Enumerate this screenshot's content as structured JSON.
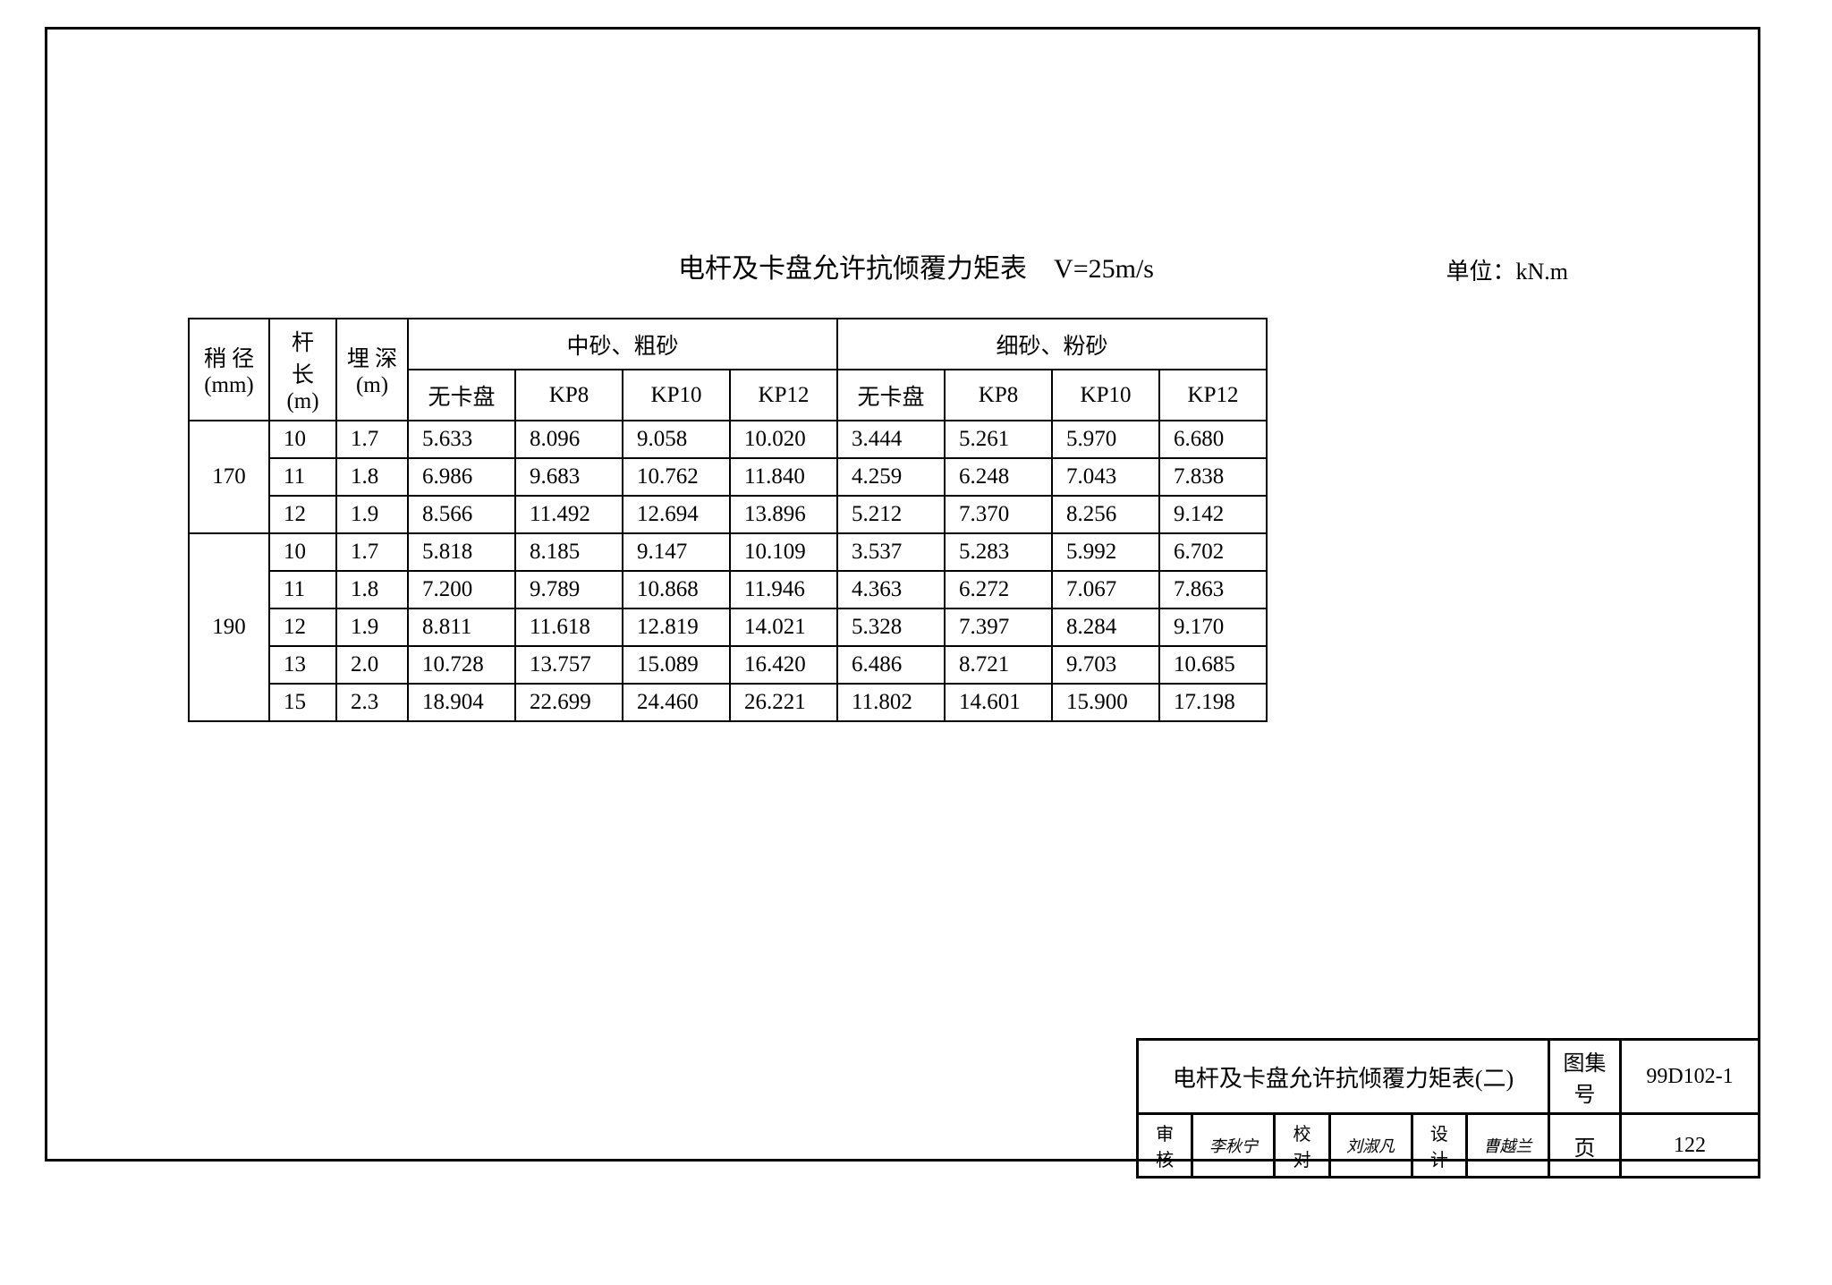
{
  "title": "电杆及卡盘允许抗倾覆力矩表　V=25m/s",
  "unit_label": "单位：kN.m",
  "table": {
    "type": "table",
    "header1": {
      "diameter": "稍 径\n(mm)",
      "length": "杆 长\n(m)",
      "depth": "埋 深\n(m)",
      "group1": "中砂、粗砂",
      "group2": "细砂、粉砂"
    },
    "header2": [
      "无卡盘",
      "KP8",
      "KP10",
      "KP12",
      "无卡盘",
      "KP8",
      "KP10",
      "KP12"
    ],
    "groups": [
      {
        "diameter": "170",
        "rows": [
          {
            "length": "10",
            "depth": "1.7",
            "cells": [
              "5.633",
              "8.096",
              "9.058",
              "10.020",
              "3.444",
              "5.261",
              "5.970",
              "6.680"
            ]
          },
          {
            "length": "11",
            "depth": "1.8",
            "cells": [
              "6.986",
              "9.683",
              "10.762",
              "11.840",
              "4.259",
              "6.248",
              "7.043",
              "7.838"
            ]
          },
          {
            "length": "12",
            "depth": "1.9",
            "cells": [
              "8.566",
              "11.492",
              "12.694",
              "13.896",
              "5.212",
              "7.370",
              "8.256",
              "9.142"
            ]
          }
        ]
      },
      {
        "diameter": "190",
        "rows": [
          {
            "length": "10",
            "depth": "1.7",
            "cells": [
              "5.818",
              "8.185",
              "9.147",
              "10.109",
              "3.537",
              "5.283",
              "5.992",
              "6.702"
            ]
          },
          {
            "length": "11",
            "depth": "1.8",
            "cells": [
              "7.200",
              "9.789",
              "10.868",
              "11.946",
              "4.363",
              "6.272",
              "7.067",
              "7.863"
            ]
          },
          {
            "length": "12",
            "depth": "1.9",
            "cells": [
              "8.811",
              "11.618",
              "12.819",
              "14.021",
              "5.328",
              "7.397",
              "8.284",
              "9.170"
            ]
          },
          {
            "length": "13",
            "depth": "2.0",
            "cells": [
              "10.728",
              "13.757",
              "15.089",
              "16.420",
              "6.486",
              "8.721",
              "9.703",
              "10.685"
            ]
          },
          {
            "length": "15",
            "depth": "2.3",
            "cells": [
              "18.904",
              "22.699",
              "24.460",
              "26.221",
              "11.802",
              "14.601",
              "15.900",
              "17.198"
            ]
          }
        ]
      }
    ],
    "border_color": "#000000",
    "background_color": "#ffffff",
    "font_size": 25
  },
  "title_block": {
    "row1": {
      "title": "电杆及卡盘允许抗倾覆力矩表(二)",
      "set_label": "图集号",
      "set_value": "99D102-1"
    },
    "row2": {
      "審核_label": "审核",
      "審核_sig": "李秋宁",
      "校对_label": "校对",
      "校对_sig": "刘淑凡",
      "设计_label": "设计",
      "设计_sig": "曹越兰",
      "page_label": "页",
      "page_value": "122"
    }
  }
}
